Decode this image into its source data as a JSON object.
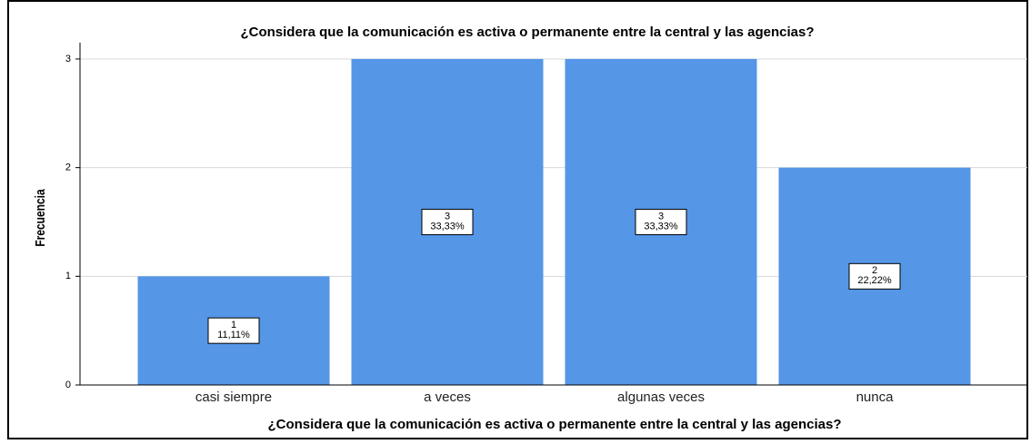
{
  "chart_data": {
    "type": "bar",
    "title": "¿Considera que la comunicación es activa o permanente entre la central y las agencias?",
    "x_label": "¿Considera que la comunicación es activa o permanente entre la central y las agencias?",
    "y_label": "Frecuencia",
    "categories": [
      "casi siempre",
      "a veces",
      "algunas veces",
      "nunca"
    ],
    "values": [
      1,
      3,
      3,
      2
    ],
    "percentages": [
      11.11,
      33.33,
      33.33,
      22.22
    ],
    "percentage_labels": [
      "11,11%",
      "33,33%",
      "33,33%",
      "22,22%"
    ],
    "color": "#5596e6",
    "ylim": [
      0,
      3.15
    ],
    "yticks": [
      0,
      1,
      2,
      3
    ],
    "grid": true
  }
}
